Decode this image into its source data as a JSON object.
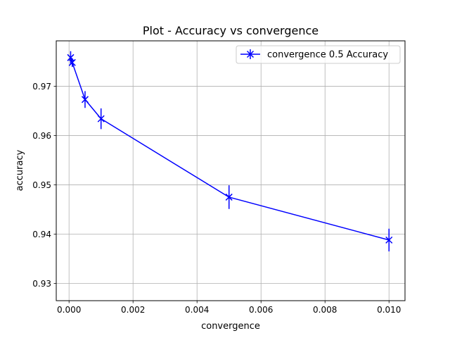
{
  "chart_data": {
    "type": "line",
    "title": "Plot - Accuracy vs convergence",
    "xlabel": "convergence",
    "ylabel": "accuracy",
    "xlim": [
      -0.0004,
      0.0105
    ],
    "ylim": [
      0.9265,
      0.9792
    ],
    "xticks": [
      0.0,
      0.002,
      0.004,
      0.006,
      0.008,
      0.01
    ],
    "xtick_labels": [
      "0.000",
      "0.002",
      "0.004",
      "0.006",
      "0.008",
      "0.010"
    ],
    "yticks": [
      0.93,
      0.94,
      0.95,
      0.96,
      0.97
    ],
    "ytick_labels": [
      "0.93",
      "0.94",
      "0.95",
      "0.96",
      "0.97"
    ],
    "grid": true,
    "legend_position": "upper-right",
    "series": [
      {
        "name": "convergence 0.5 Accuracy",
        "color": "#0000ff",
        "marker": "x",
        "x": [
          5e-05,
          0.0001,
          0.0005,
          0.001,
          0.005,
          0.01
        ],
        "y": [
          0.9758,
          0.9748,
          0.9673,
          0.9634,
          0.9475,
          0.9388
        ],
        "yerr": [
          0.0013,
          0.0009,
          0.0017,
          0.0021,
          0.0024,
          0.0023
        ]
      }
    ]
  }
}
